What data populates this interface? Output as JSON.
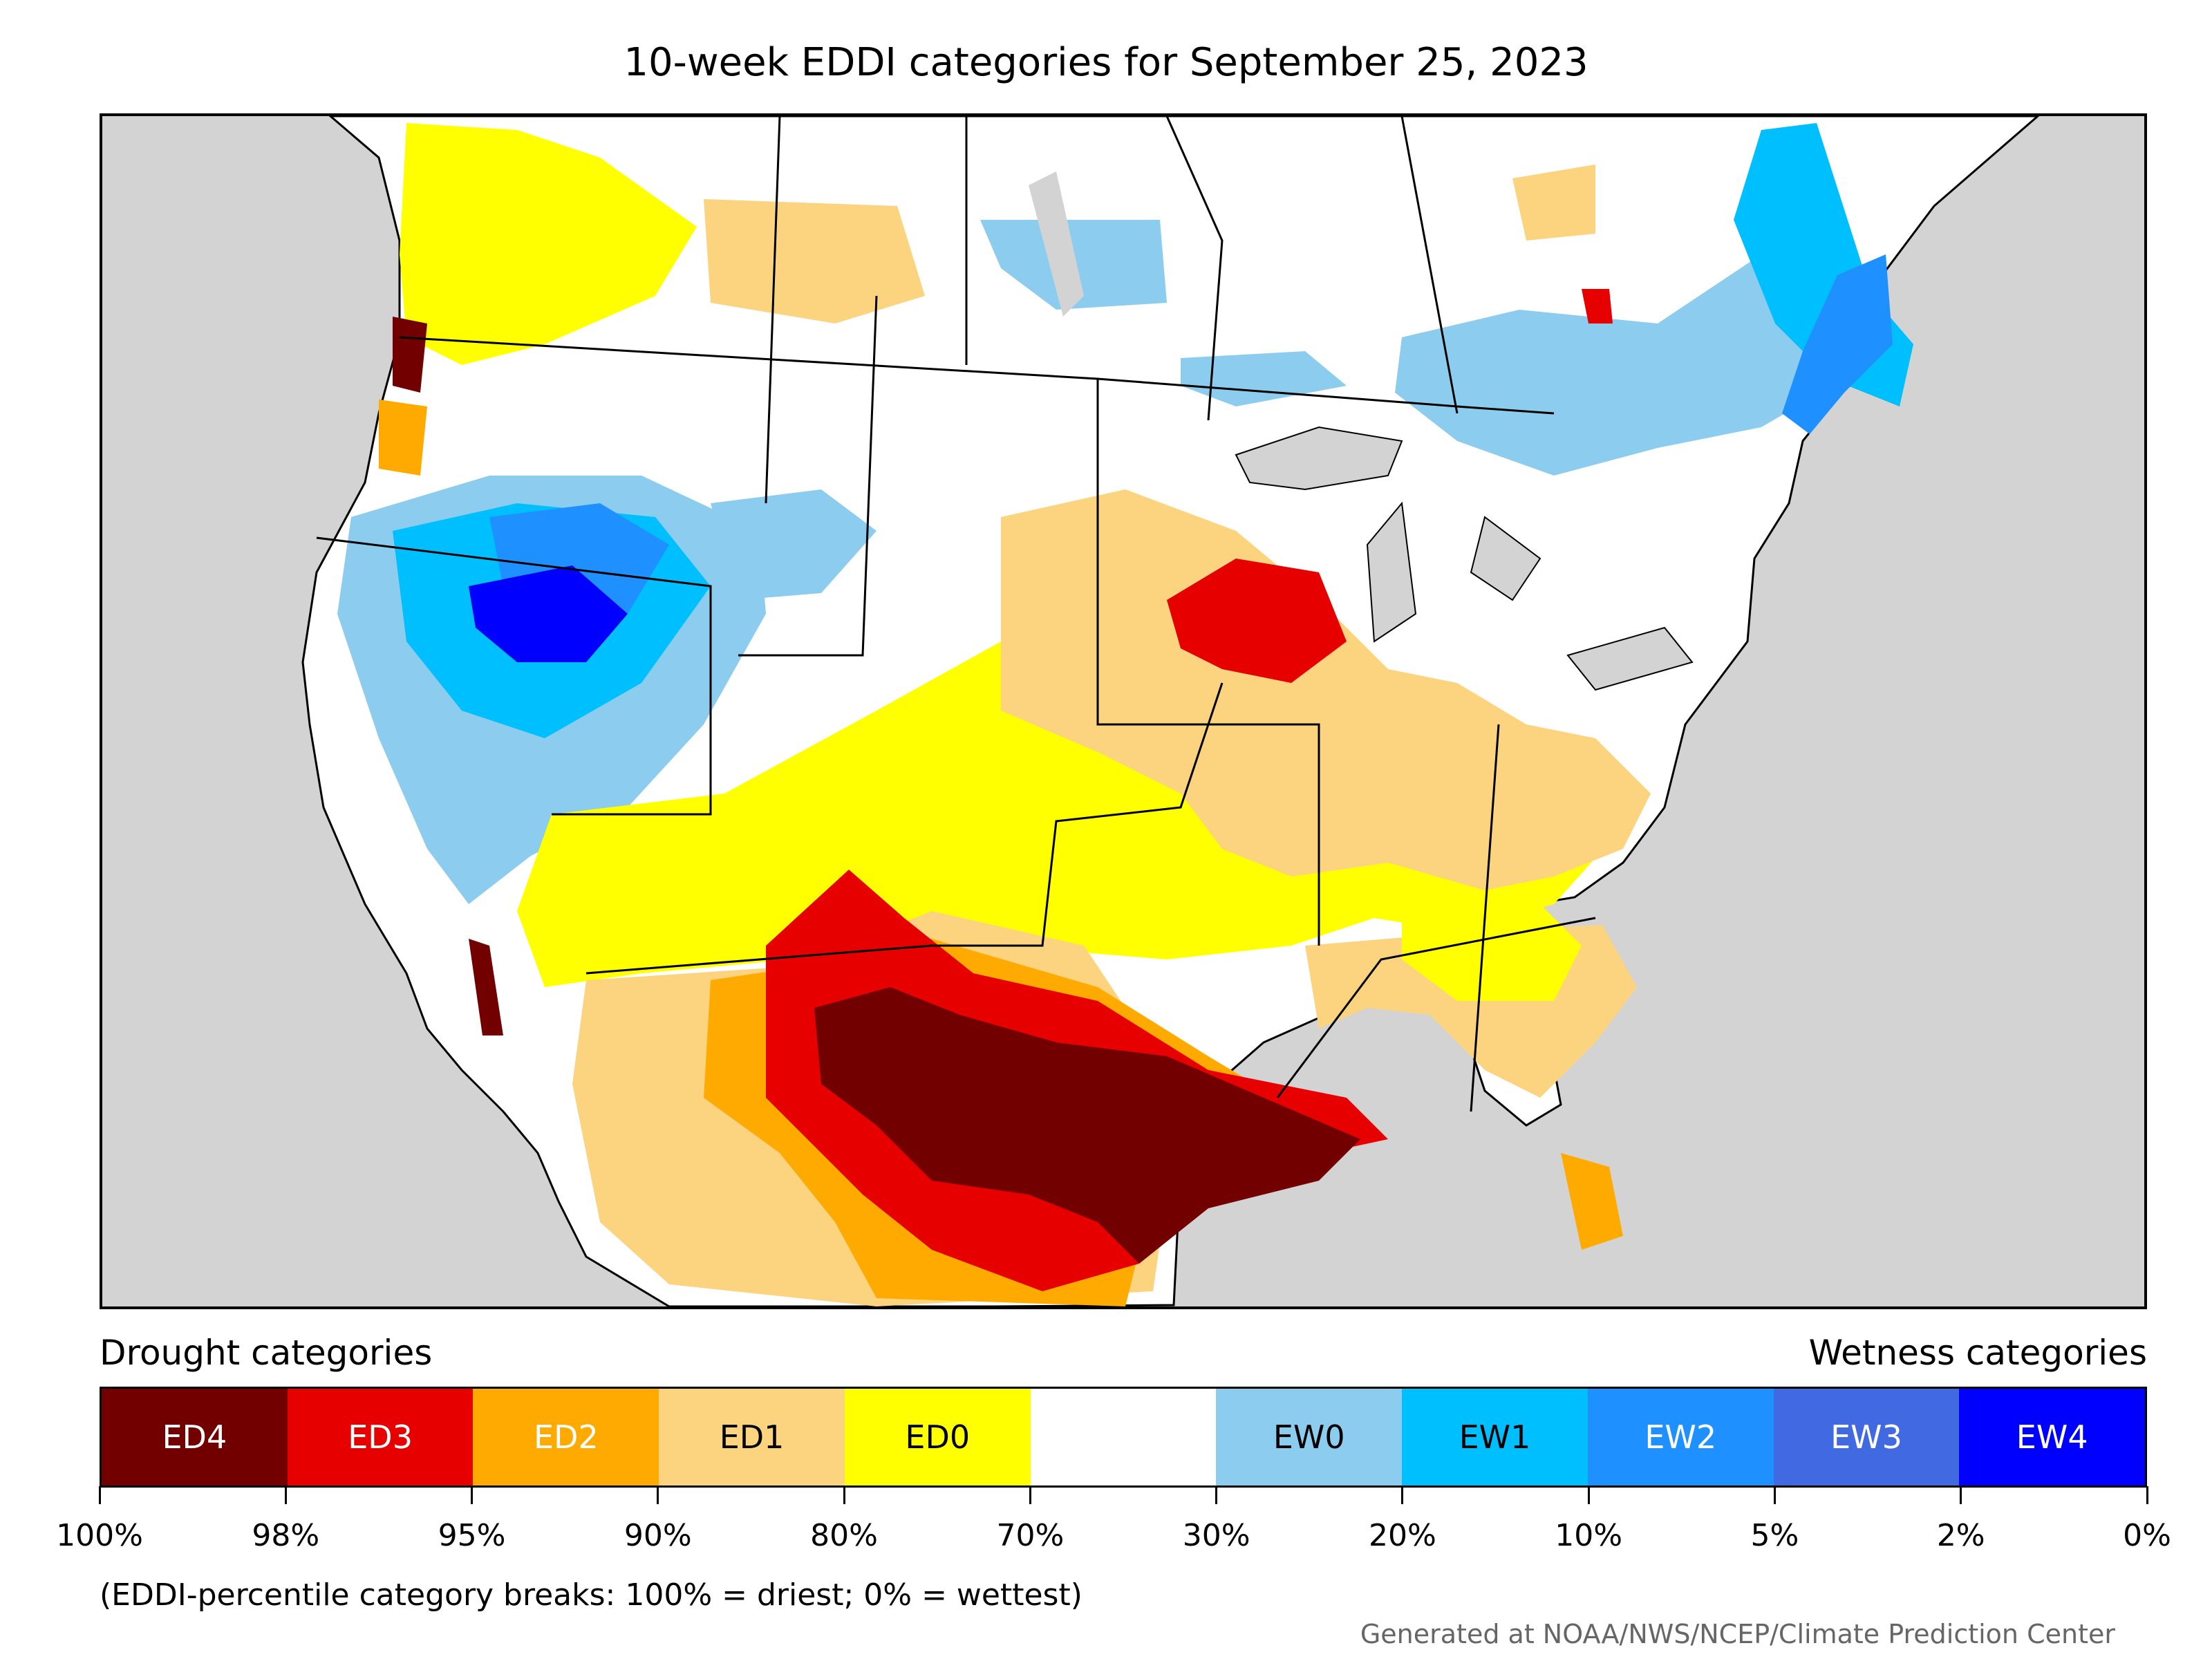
{
  "title": "10-week EDDI categories for September 25, 2023",
  "legend": {
    "drought_heading": "Drought categories",
    "wetness_heading": "Wetness categories",
    "categories": [
      {
        "label": "ED4",
        "color": "#730000",
        "text_color": "#ffffff"
      },
      {
        "label": "ED3",
        "color": "#e60000",
        "text_color": "#ffffff"
      },
      {
        "label": "ED2",
        "color": "#ffaa00",
        "text_color": "#ffffff"
      },
      {
        "label": "ED1",
        "color": "#fcd37f",
        "text_color": "#000000"
      },
      {
        "label": "ED0",
        "color": "#ffff00",
        "text_color": "#000000"
      },
      {
        "label": "",
        "color": "#ffffff",
        "text_color": "#000000"
      },
      {
        "label": "EW0",
        "color": "#8ccdef",
        "text_color": "#000000"
      },
      {
        "label": "EW1",
        "color": "#00bfff",
        "text_color": "#000000"
      },
      {
        "label": "EW2",
        "color": "#1e90ff",
        "text_color": "#ffffff"
      },
      {
        "label": "EW3",
        "color": "#4169e1",
        "text_color": "#ffffff"
      },
      {
        "label": "EW4",
        "color": "#0000ff",
        "text_color": "#ffffff"
      }
    ],
    "ticks": [
      "100%",
      "98%",
      "95%",
      "90%",
      "80%",
      "70%",
      "30%",
      "20%",
      "10%",
      "5%",
      "2%",
      "0%"
    ]
  },
  "footnote": "(EDDI-percentile category breaks: 100% = driest; 0% = wettest)",
  "credit": "Generated at NOAA/NWS/NCEP/Climate Prediction Center",
  "colors": {
    "background_gray": "#d3d3d3",
    "border": "#000000"
  }
}
